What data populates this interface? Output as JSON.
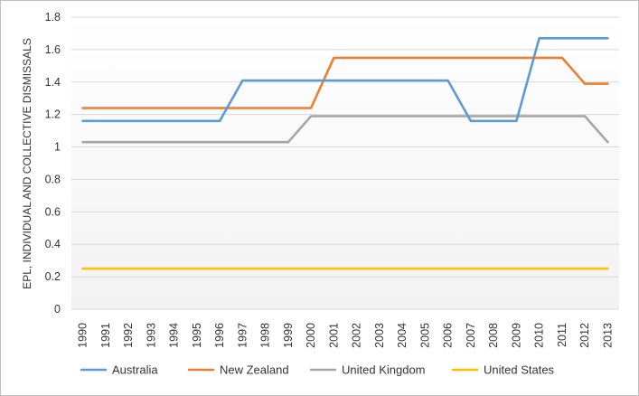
{
  "chart_data": {
    "type": "line",
    "title": "",
    "xlabel": "",
    "ylabel": "EPL, INDIVIDUAL AND COLLECTIVE DISMISSALS",
    "ylim": [
      0,
      1.8
    ],
    "yticks": [
      "0",
      "0.2",
      "0.4",
      "0.6",
      "0.8",
      "1",
      "1.2",
      "1.4",
      "1.6",
      "1.8"
    ],
    "grid": true,
    "legend_position": "bottom",
    "categories": [
      "1990",
      "1991",
      "1992",
      "1993",
      "1994",
      "1995",
      "1996",
      "1997",
      "1998",
      "1999",
      "2000",
      "2001",
      "2002",
      "2003",
      "2004",
      "2005",
      "2006",
      "2007",
      "2008",
      "2009",
      "2010",
      "2011",
      "2012",
      "2013"
    ],
    "series": [
      {
        "name": "Australia",
        "color": "#5b9bd5",
        "values": [
          1.16,
          1.16,
          1.16,
          1.16,
          1.16,
          1.16,
          1.16,
          1.41,
          1.41,
          1.41,
          1.41,
          1.41,
          1.41,
          1.41,
          1.41,
          1.41,
          1.41,
          1.16,
          1.16,
          1.16,
          1.67,
          1.67,
          1.67,
          1.67
        ]
      },
      {
        "name": "New Zealand",
        "color": "#ed7d31",
        "values": [
          1.24,
          1.24,
          1.24,
          1.24,
          1.24,
          1.24,
          1.24,
          1.24,
          1.24,
          1.24,
          1.24,
          1.55,
          1.55,
          1.55,
          1.55,
          1.55,
          1.55,
          1.55,
          1.55,
          1.55,
          1.55,
          1.55,
          1.39,
          1.39
        ]
      },
      {
        "name": "United Kingdom",
        "color": "#a5a5a5",
        "values": [
          1.03,
          1.03,
          1.03,
          1.03,
          1.03,
          1.03,
          1.03,
          1.03,
          1.03,
          1.03,
          1.19,
          1.19,
          1.19,
          1.19,
          1.19,
          1.19,
          1.19,
          1.19,
          1.19,
          1.19,
          1.19,
          1.19,
          1.19,
          1.03
        ]
      },
      {
        "name": "United States",
        "color": "#ffc000",
        "values": [
          0.25,
          0.25,
          0.25,
          0.25,
          0.25,
          0.25,
          0.25,
          0.25,
          0.25,
          0.25,
          0.25,
          0.25,
          0.25,
          0.25,
          0.25,
          0.25,
          0.25,
          0.25,
          0.25,
          0.25,
          0.25,
          0.25,
          0.25,
          0.25
        ]
      }
    ]
  }
}
